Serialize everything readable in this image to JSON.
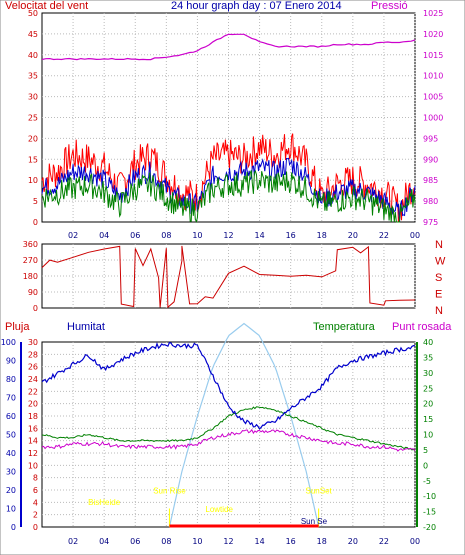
{
  "chart_data": [
    {
      "type": "line",
      "id": "wind-pressure",
      "title": "24 hour graph day : 07 Enero 2014",
      "left_label": "Velocitat del vent",
      "right_label": "Pressió",
      "colors": {
        "gust": "#ff0000",
        "speed": "#0000cc",
        "avg": "#008000",
        "pressure": "#cc00cc"
      },
      "x_ticks": [
        "02",
        "04",
        "06",
        "08",
        "10",
        "12",
        "14",
        "16",
        "18",
        "20",
        "22",
        "00"
      ],
      "y_left_ticks": [
        "0",
        "5",
        "10",
        "15",
        "20",
        "25",
        "30",
        "35",
        "40",
        "45",
        "50"
      ],
      "y_right_ticks": [
        "975",
        "980",
        "985",
        "990",
        "995",
        "1000",
        "1005",
        "1010",
        "1015",
        "1020",
        "1025"
      ],
      "ylim_left": [
        0,
        50
      ],
      "ylim_right": [
        975,
        1025
      ],
      "pressure_series": {
        "x": [
          0,
          1,
          2,
          3,
          4,
          5,
          6,
          7,
          8,
          9,
          10,
          11,
          12,
          13,
          14,
          15,
          16,
          17,
          18,
          19,
          20,
          21,
          22,
          23,
          24
        ],
        "values": [
          1014,
          1014,
          1014,
          1014,
          1014,
          1014,
          1014,
          1014,
          1014.5,
          1015,
          1016,
          1018,
          1020,
          1020,
          1018,
          1017,
          1017,
          1017,
          1017,
          1017.5,
          1017.5,
          1017.5,
          1018,
          1018,
          1018.5
        ]
      },
      "wind_envelope": {
        "x": [
          0,
          1,
          2,
          3,
          4,
          5,
          6,
          7,
          8,
          9,
          10,
          11,
          12,
          13,
          14,
          15,
          16,
          17,
          18,
          19,
          20,
          21,
          22,
          23,
          24
        ],
        "gust": [
          10,
          12,
          16,
          15,
          13,
          8,
          14,
          16,
          11,
          7,
          6,
          15,
          16,
          15,
          18,
          16,
          19,
          14,
          6,
          9,
          10,
          9,
          7,
          3,
          10
        ],
        "speed": [
          8,
          9,
          12,
          12,
          10,
          6,
          11,
          12,
          8,
          5,
          4,
          11,
          12,
          12,
          13,
          12,
          14,
          11,
          5,
          7,
          8,
          7,
          5,
          2,
          8
        ],
        "avg": [
          6,
          7,
          8,
          9,
          7,
          4,
          8,
          9,
          6,
          3,
          3,
          8,
          9,
          9,
          10,
          9,
          10,
          8,
          4,
          5,
          6,
          5,
          3,
          1,
          6
        ]
      }
    },
    {
      "type": "line",
      "id": "wind-direction",
      "y_ticks": [
        "360",
        "270",
        "180",
        "90",
        "0"
      ],
      "compass": [
        "N",
        "W",
        "S",
        "E",
        "N"
      ],
      "ylim": [
        0,
        360
      ],
      "x": [
        0,
        0.5,
        1,
        2,
        3,
        4,
        5,
        5.1,
        5.9,
        6,
        6.5,
        7,
        7.5,
        7.6,
        8,
        8.1,
        8.5,
        9,
        9,
        9.5,
        10,
        10.5,
        11,
        12,
        13,
        14,
        15,
        16,
        17,
        18,
        18.9,
        19,
        20,
        20.5,
        21,
        21.1,
        22,
        22.1,
        23,
        24
      ],
      "values": [
        225,
        270,
        260,
        290,
        310,
        330,
        345,
        20,
        10,
        330,
        240,
        330,
        170,
        5,
        340,
        5,
        40,
        270,
        350,
        20,
        20,
        60,
        60,
        200,
        230,
        190,
        180,
        180,
        180,
        180,
        210,
        330,
        340,
        310,
        340,
        30,
        20,
        45,
        45,
        45
      ]
    },
    {
      "type": "line",
      "id": "humidity-temp-rain",
      "left_labels": {
        "rain": "Pluja",
        "humidity": "Humitat"
      },
      "right_labels": {
        "temperature": "Temperatura",
        "dewpoint": "Punt rosada"
      },
      "colors": {
        "rain": "#ff0000",
        "humidity": "#0000cc",
        "temperature": "#008000",
        "dewpoint": "#cc00cc",
        "solar": "#99ccee",
        "events": "#ffff00"
      },
      "rain_ticks": [
        "0",
        "2",
        "4",
        "6",
        "8",
        "10",
        "12",
        "14",
        "16",
        "18",
        "20",
        "22",
        "24",
        "26",
        "28",
        "30"
      ],
      "humidity_ticks": [
        "0",
        "10",
        "20",
        "30",
        "40",
        "50",
        "60",
        "70",
        "80",
        "90",
        "100"
      ],
      "temp_ticks": [
        "-20",
        "-15",
        "-10",
        "-5",
        "0",
        "5",
        "10",
        "15",
        "20",
        "25",
        "30",
        "35",
        "40"
      ],
      "ylim_humidity": [
        0,
        100
      ],
      "ylim_temp": [
        -20,
        40
      ],
      "x_ticks": [
        "02",
        "04",
        "06",
        "08",
        "10",
        "12",
        "14",
        "16",
        "18",
        "20",
        "22",
        "00"
      ],
      "humidity": {
        "x": [
          0,
          1,
          2,
          3,
          4,
          5,
          6,
          7,
          8,
          9,
          10,
          11,
          12,
          13,
          14,
          15,
          16,
          17,
          18,
          19,
          20,
          21,
          22,
          23,
          24
        ],
        "values": [
          78,
          83,
          88,
          93,
          85,
          90,
          94,
          97,
          99,
          98,
          98,
          82,
          65,
          57,
          54,
          57,
          64,
          70,
          76,
          86,
          90,
          92,
          94,
          96,
          97
        ]
      },
      "temperature": {
        "x": [
          0,
          1,
          2,
          3,
          4,
          5,
          6,
          7,
          8,
          9,
          10,
          11,
          12,
          13,
          14,
          15,
          16,
          17,
          18,
          19,
          20,
          21,
          22,
          23,
          24
        ],
        "values": [
          10,
          9,
          9,
          10,
          9,
          8,
          8,
          8,
          8,
          8,
          9,
          12,
          16,
          18,
          19,
          18,
          16,
          14,
          12,
          10,
          9,
          8,
          7,
          6,
          5
        ]
      },
      "dewpoint": {
        "x": [
          0,
          1,
          2,
          3,
          4,
          5,
          6,
          7,
          8,
          9,
          10,
          11,
          12,
          13,
          14,
          15,
          16,
          17,
          18,
          19,
          20,
          21,
          22,
          23,
          24
        ],
        "values": [
          6,
          6,
          7,
          7,
          7,
          6,
          6,
          6,
          6,
          6,
          7,
          9,
          10,
          11,
          11,
          11,
          10,
          9,
          8,
          7,
          7,
          6,
          6,
          5,
          5
        ]
      },
      "solar": {
        "x": [
          8.2,
          9,
          10,
          11,
          12,
          13,
          14,
          15,
          16,
          17,
          17.8
        ],
        "values": [
          0,
          9,
          18,
          26,
          31,
          33,
          31,
          26,
          18,
          9,
          0
        ]
      },
      "rain_total": 0,
      "events": {
        "BisHeide": "BisHeide",
        "SunRise": "Sun Rise",
        "Lowtide": "Lowtide",
        "SunSet": "SunSet",
        "SunSet2": "Sun Se"
      }
    }
  ]
}
